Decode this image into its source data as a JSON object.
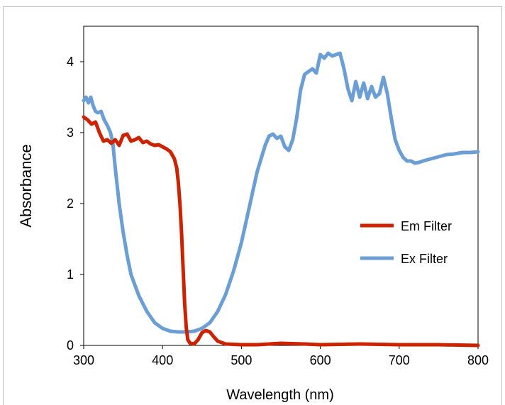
{
  "chart_data": {
    "type": "line",
    "title": "",
    "xlabel": "Wavelength (nm)",
    "ylabel": "Absorbance",
    "xlim": [
      300,
      800
    ],
    "ylim": [
      0,
      4.5
    ],
    "xticks": [
      "300",
      "400",
      "500",
      "600",
      "700",
      "800"
    ],
    "yticks": [
      "0",
      "1",
      "2",
      "3",
      "4"
    ],
    "grid": false,
    "legend_position": "right",
    "series": [
      {
        "name": "Em Filter",
        "color": "#cc2200",
        "points": [
          [
            300,
            3.22
          ],
          [
            305,
            3.18
          ],
          [
            310,
            3.12
          ],
          [
            315,
            3.15
          ],
          [
            320,
            3.0
          ],
          [
            325,
            2.88
          ],
          [
            330,
            2.9
          ],
          [
            335,
            2.85
          ],
          [
            340,
            2.9
          ],
          [
            345,
            2.82
          ],
          [
            350,
            2.96
          ],
          [
            355,
            2.98
          ],
          [
            360,
            2.88
          ],
          [
            365,
            2.9
          ],
          [
            370,
            2.93
          ],
          [
            375,
            2.86
          ],
          [
            380,
            2.88
          ],
          [
            385,
            2.84
          ],
          [
            390,
            2.82
          ],
          [
            395,
            2.83
          ],
          [
            400,
            2.8
          ],
          [
            405,
            2.77
          ],
          [
            410,
            2.73
          ],
          [
            415,
            2.63
          ],
          [
            418,
            2.5
          ],
          [
            420,
            2.3
          ],
          [
            422,
            2.0
          ],
          [
            424,
            1.6
          ],
          [
            426,
            1.1
          ],
          [
            428,
            0.6
          ],
          [
            430,
            0.25
          ],
          [
            432,
            0.08
          ],
          [
            435,
            0.03
          ],
          [
            440,
            0.02
          ],
          [
            445,
            0.08
          ],
          [
            450,
            0.18
          ],
          [
            455,
            0.21
          ],
          [
            460,
            0.19
          ],
          [
            465,
            0.12
          ],
          [
            470,
            0.06
          ],
          [
            480,
            0.02
          ],
          [
            500,
            0.01
          ],
          [
            520,
            0.01
          ],
          [
            550,
            0.03
          ],
          [
            580,
            0.02
          ],
          [
            600,
            0.01
          ],
          [
            650,
            0.02
          ],
          [
            700,
            0.01
          ],
          [
            750,
            0.01
          ],
          [
            800,
            0.0
          ]
        ]
      },
      {
        "name": "Ex Filter",
        "color": "#6a9ed4",
        "points": [
          [
            300,
            3.45
          ],
          [
            303,
            3.5
          ],
          [
            306,
            3.42
          ],
          [
            309,
            3.5
          ],
          [
            312,
            3.38
          ],
          [
            315,
            3.3
          ],
          [
            318,
            3.28
          ],
          [
            322,
            3.3
          ],
          [
            326,
            3.18
          ],
          [
            330,
            3.1
          ],
          [
            334,
            3.0
          ],
          [
            337,
            2.85
          ],
          [
            340,
            2.5
          ],
          [
            345,
            2.0
          ],
          [
            350,
            1.6
          ],
          [
            355,
            1.27
          ],
          [
            360,
            1.0
          ],
          [
            370,
            0.7
          ],
          [
            380,
            0.48
          ],
          [
            390,
            0.32
          ],
          [
            400,
            0.24
          ],
          [
            410,
            0.2
          ],
          [
            420,
            0.19
          ],
          [
            430,
            0.19
          ],
          [
            440,
            0.2
          ],
          [
            450,
            0.24
          ],
          [
            460,
            0.32
          ],
          [
            470,
            0.48
          ],
          [
            480,
            0.72
          ],
          [
            490,
            1.05
          ],
          [
            500,
            1.45
          ],
          [
            510,
            1.95
          ],
          [
            520,
            2.45
          ],
          [
            530,
            2.82
          ],
          [
            535,
            2.95
          ],
          [
            540,
            2.98
          ],
          [
            545,
            2.92
          ],
          [
            550,
            2.95
          ],
          [
            555,
            2.8
          ],
          [
            560,
            2.75
          ],
          [
            565,
            2.9
          ],
          [
            570,
            3.2
          ],
          [
            575,
            3.6
          ],
          [
            580,
            3.82
          ],
          [
            585,
            3.86
          ],
          [
            590,
            3.9
          ],
          [
            595,
            3.84
          ],
          [
            600,
            4.1
          ],
          [
            605,
            4.05
          ],
          [
            610,
            4.12
          ],
          [
            615,
            4.08
          ],
          [
            620,
            4.1
          ],
          [
            625,
            4.12
          ],
          [
            630,
            3.9
          ],
          [
            635,
            3.62
          ],
          [
            640,
            3.45
          ],
          [
            645,
            3.72
          ],
          [
            650,
            3.5
          ],
          [
            655,
            3.7
          ],
          [
            660,
            3.48
          ],
          [
            665,
            3.65
          ],
          [
            670,
            3.5
          ],
          [
            675,
            3.55
          ],
          [
            680,
            3.78
          ],
          [
            685,
            3.55
          ],
          [
            690,
            3.2
          ],
          [
            695,
            2.9
          ],
          [
            700,
            2.75
          ],
          [
            705,
            2.65
          ],
          [
            710,
            2.6
          ],
          [
            715,
            2.6
          ],
          [
            720,
            2.57
          ],
          [
            725,
            2.58
          ],
          [
            730,
            2.6
          ],
          [
            740,
            2.63
          ],
          [
            750,
            2.66
          ],
          [
            760,
            2.69
          ],
          [
            770,
            2.7
          ],
          [
            780,
            2.72
          ],
          [
            790,
            2.72
          ],
          [
            800,
            2.73
          ]
        ]
      }
    ]
  }
}
